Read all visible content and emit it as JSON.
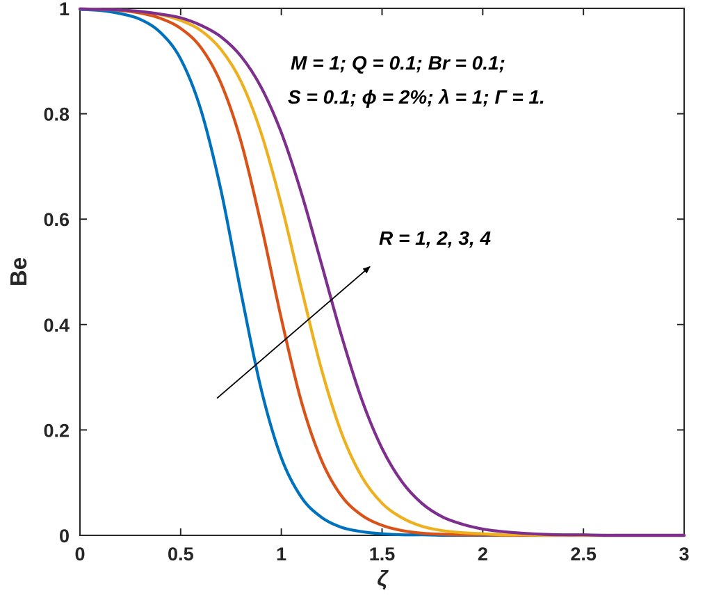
{
  "chart_data": {
    "type": "line",
    "title": "",
    "xlabel": "ζ",
    "ylabel": "Be",
    "xlim": [
      0,
      3
    ],
    "ylim": [
      0,
      1
    ],
    "grid": false,
    "legend_position": "none",
    "xticks": [
      0,
      0.5,
      1,
      1.5,
      2,
      2.5,
      3
    ],
    "xtick_labels": [
      "0",
      "0.5",
      "1",
      "1.5",
      "2",
      "2.5",
      "3"
    ],
    "yticks": [
      0,
      0.2,
      0.4,
      0.6,
      0.8,
      1
    ],
    "ytick_labels": [
      "0",
      "0.2",
      "0.4",
      "0.6",
      "0.8",
      "1"
    ],
    "x": [
      0,
      0.1,
      0.2,
      0.3,
      0.4,
      0.5,
      0.6,
      0.7,
      0.8,
      0.9,
      1.0,
      1.1,
      1.2,
      1.3,
      1.4,
      1.5,
      1.6,
      1.7,
      1.8,
      1.9,
      2.0,
      2.1,
      2.2,
      2.3,
      2.4,
      2.5,
      2.6,
      2.7,
      2.8,
      2.9,
      3.0
    ],
    "series": [
      {
        "name": "R = 1",
        "color": "#0072BD",
        "values": [
          0.998,
          0.996,
          0.99,
          0.979,
          0.954,
          0.904,
          0.808,
          0.655,
          0.46,
          0.277,
          0.147,
          0.072,
          0.034,
          0.015,
          0.007,
          0.003,
          0.001,
          0.001,
          0.0,
          0.0,
          0.0,
          0.0,
          0.0,
          0.0,
          0.0,
          0.0,
          0.0,
          0.0,
          0.0,
          0.0,
          0.0
        ]
      },
      {
        "name": "R = 2",
        "color": "#D95319",
        "values": [
          0.999,
          0.998,
          0.996,
          0.991,
          0.981,
          0.962,
          0.926,
          0.858,
          0.747,
          0.589,
          0.411,
          0.253,
          0.142,
          0.074,
          0.038,
          0.019,
          0.009,
          0.004,
          0.002,
          0.001,
          0.001,
          0.0,
          0.0,
          0.0,
          0.0,
          0.0,
          0.0,
          0.0,
          0.0,
          0.0,
          0.0
        ]
      },
      {
        "name": "R = 3",
        "color": "#EDB120",
        "values": [
          0.999,
          0.998,
          0.997,
          0.994,
          0.988,
          0.977,
          0.958,
          0.922,
          0.861,
          0.763,
          0.627,
          0.468,
          0.314,
          0.193,
          0.111,
          0.061,
          0.033,
          0.017,
          0.009,
          0.005,
          0.003,
          0.001,
          0.001,
          0.0,
          0.0,
          0.0,
          0.0,
          0.0,
          0.0,
          0.0,
          0.0
        ]
      },
      {
        "name": "R = 4",
        "color": "#7E2F8E",
        "values": [
          0.999,
          0.998,
          0.997,
          0.994,
          0.989,
          0.982,
          0.968,
          0.946,
          0.909,
          0.85,
          0.764,
          0.649,
          0.514,
          0.377,
          0.257,
          0.165,
          0.101,
          0.06,
          0.035,
          0.021,
          0.012,
          0.007,
          0.004,
          0.002,
          0.001,
          0.001,
          0.0,
          0.0,
          0.0,
          0.0,
          0.0
        ]
      }
    ],
    "annotations": {
      "params_line1": "M = 1; Q = 0.1; Br = 0.1;",
      "params_line2": "S = 0.1; ϕ = 2%; λ = 1; Γ = 1.",
      "series_label": "R = 1, 2, 3, 4",
      "arrow": {
        "x1": 0.68,
        "y1": 0.26,
        "x2": 1.44,
        "y2": 0.51
      }
    },
    "axis_color": "#262626",
    "text_color": "#000000"
  }
}
